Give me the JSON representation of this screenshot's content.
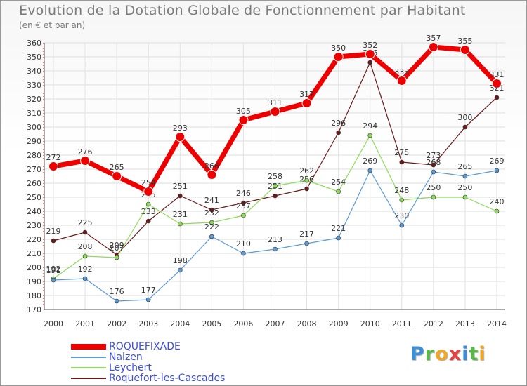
{
  "logo": {
    "text": "Proxiti",
    "letters": [
      {
        "ch": "P",
        "color": "#3c8fd6"
      },
      {
        "ch": "r",
        "color": "#59b847"
      },
      {
        "ch": "o",
        "color": "#f2a624"
      },
      {
        "ch": "x",
        "color": "#e83f3f"
      },
      {
        "ch": "i",
        "color": "#3c8fd6"
      },
      {
        "ch": "t",
        "color": "#59b847"
      },
      {
        "ch": "i",
        "color": "#f2a624"
      }
    ]
  },
  "chart_data": {
    "type": "line",
    "title": "Evolution de la Dotation Globale de Fonctionnement par Habitant",
    "subtitle": "(en € et par an)",
    "xlabel": "",
    "ylabel": "",
    "ylim": [
      170,
      360
    ],
    "ystep": 10,
    "grid": true,
    "legend_position": "bottom-left",
    "x": [
      "2000",
      "2001",
      "2002",
      "2003",
      "2004",
      "2005",
      "2006",
      "2007",
      "2008",
      "2009",
      "2010",
      "2011",
      "2012",
      "2013",
      "2014"
    ],
    "series": [
      {
        "name": "Roquefort-les-Cascades",
        "color": "#6b1a1a",
        "values": [
          219,
          225,
          209,
          233,
          251,
          241,
          246,
          251,
          256,
          296,
          346,
          275,
          273,
          300,
          321
        ]
      },
      {
        "name": "Leychert",
        "color": "#8fdb5a",
        "values": [
          192,
          208,
          207,
          245,
          231,
          232,
          237,
          258,
          262,
          254,
          294,
          248,
          250,
          250,
          240
        ]
      },
      {
        "name": "Nalzen",
        "color": "#5b9bd5",
        "values": [
          191,
          192,
          176,
          177,
          198,
          222,
          210,
          213,
          217,
          221,
          269,
          230,
          268,
          265,
          269
        ]
      },
      {
        "name": "ROQUEFIXADE",
        "color": "#ee0000",
        "values": [
          272,
          276,
          265,
          254,
          293,
          266,
          305,
          311,
          317,
          350,
          352,
          333,
          357,
          355,
          331
        ]
      }
    ],
    "legend_order": [
      "ROQUEFIXADE",
      "Nalzen",
      "Leychert",
      "Roquefort-les-Cascades"
    ]
  }
}
